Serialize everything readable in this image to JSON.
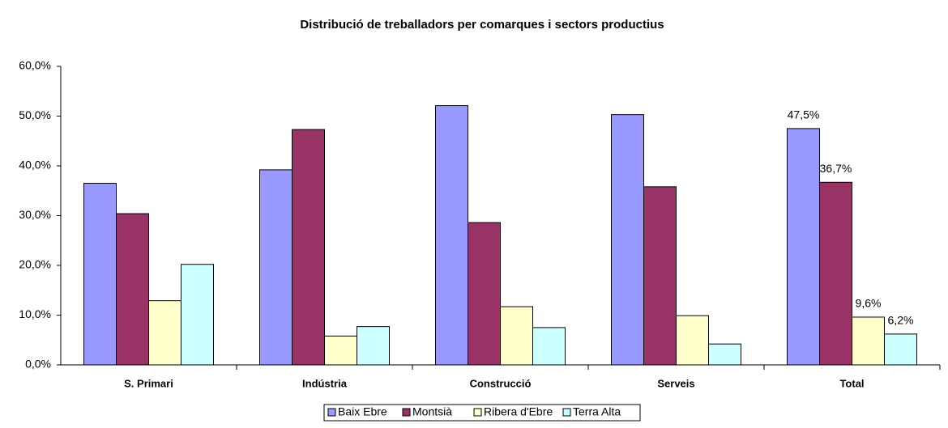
{
  "chart_data": {
    "type": "bar",
    "title": "Distribució de treballadors per comarques i sectors productius",
    "categories": [
      "S. Primari",
      "Indústria",
      "Construcció",
      "Serveis",
      "Total"
    ],
    "series": [
      {
        "name": "Baix Ebre",
        "color": "#9999ff",
        "values": [
          36.5,
          39.2,
          52.1,
          50.3,
          47.5
        ],
        "value_labels": [
          null,
          null,
          null,
          null,
          "47,5%"
        ]
      },
      {
        "name": "Montsià",
        "color": "#993366",
        "values": [
          30.4,
          47.3,
          28.6,
          35.8,
          36.7
        ],
        "value_labels": [
          null,
          null,
          null,
          null,
          "36,7%"
        ]
      },
      {
        "name": "Ribera d'Ebre",
        "color": "#ffffcc",
        "values": [
          12.9,
          5.8,
          11.7,
          9.9,
          9.6
        ],
        "value_labels": [
          null,
          null,
          null,
          null,
          "9,6%"
        ]
      },
      {
        "name": "Terra Alta",
        "color": "#ccffff",
        "values": [
          20.2,
          7.7,
          7.5,
          4.2,
          6.2
        ],
        "value_labels": [
          null,
          null,
          null,
          null,
          "6,2%"
        ]
      }
    ],
    "ylim": [
      0,
      60
    ],
    "yticks": [
      {
        "value": 0,
        "label": "0,0%"
      },
      {
        "value": 10,
        "label": "10,0%"
      },
      {
        "value": 20,
        "label": "20,0%"
      },
      {
        "value": 30,
        "label": "30,0%"
      },
      {
        "value": 40,
        "label": "40,0%"
      },
      {
        "value": 50,
        "label": "50,0%"
      },
      {
        "value": 60,
        "label": "60,0%"
      }
    ],
    "grid": false,
    "legend": "bottom"
  }
}
